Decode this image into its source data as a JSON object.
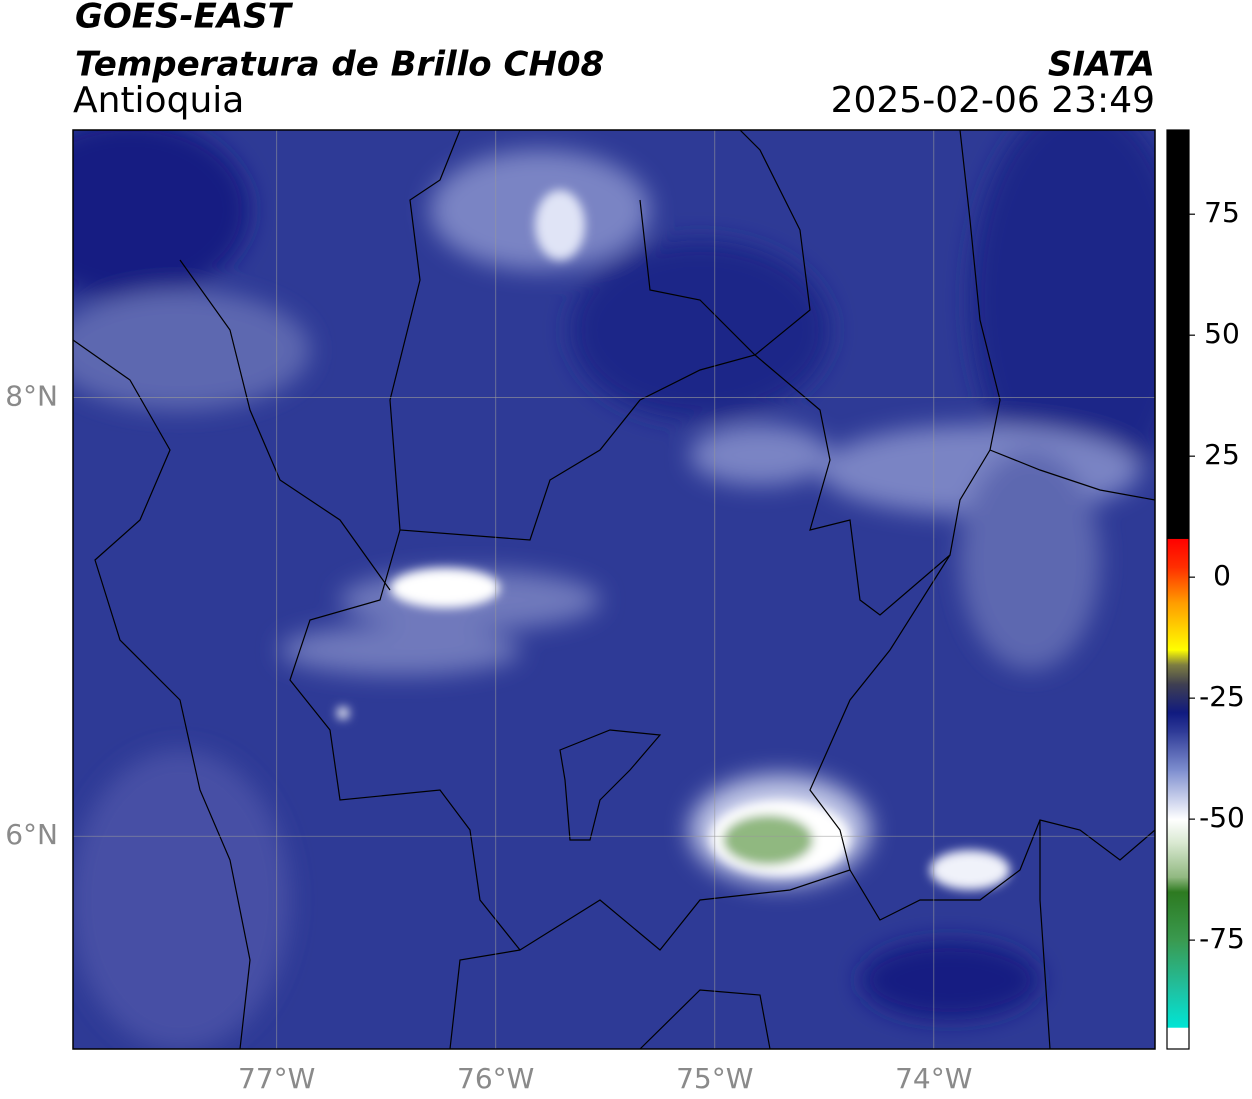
{
  "header": {
    "title": "GOES-EAST",
    "subtitle": "Temperatura de Brillo CH08",
    "region": "Antioquia",
    "source": "SIATA",
    "datetime": "2025-02-06 23:49"
  },
  "map": {
    "xlim": [
      -77.93,
      -72.99
    ],
    "ylim": [
      5.03,
      9.22
    ],
    "xticks": [
      {
        "value": -77,
        "label": "77°W"
      },
      {
        "value": -76,
        "label": "76°W"
      },
      {
        "value": -75,
        "label": "75°W"
      },
      {
        "value": -74,
        "label": "74°W"
      }
    ],
    "yticks": [
      {
        "value": 6,
        "label": "6°N"
      },
      {
        "value": 8,
        "label": "8°N"
      }
    ],
    "grid": true
  },
  "colorbar": {
    "lim": [
      -97.5,
      92.4
    ],
    "ticks": [
      -75,
      -50,
      -25,
      0,
      25,
      50,
      75
    ],
    "stops": [
      {
        "value": -97.5,
        "color": "#ffffff"
      },
      {
        "value": -93,
        "color": "#ffffff"
      },
      {
        "value": -93,
        "color": "#00e5d5"
      },
      {
        "value": -85,
        "color": "#20c0a0"
      },
      {
        "value": -75,
        "color": "#3a9a50"
      },
      {
        "value": -65,
        "color": "#2d7a20"
      },
      {
        "value": -62,
        "color": "#90b880"
      },
      {
        "value": -55,
        "color": "#d8e8d0"
      },
      {
        "value": -50,
        "color": "#ffffff"
      },
      {
        "value": -40,
        "color": "#8090d0"
      },
      {
        "value": -32,
        "color": "#303c98"
      },
      {
        "value": -28,
        "color": "#101a80"
      },
      {
        "value": -22,
        "color": "#404050"
      },
      {
        "value": -18,
        "color": "#808040"
      },
      {
        "value": -15,
        "color": "#ffff00"
      },
      {
        "value": -5,
        "color": "#ff9900"
      },
      {
        "value": 2,
        "color": "#ff3000"
      },
      {
        "value": 8,
        "color": "#ff0000"
      },
      {
        "value": 8,
        "color": "#000000"
      },
      {
        "value": 92.4,
        "color": "#000000"
      }
    ]
  }
}
